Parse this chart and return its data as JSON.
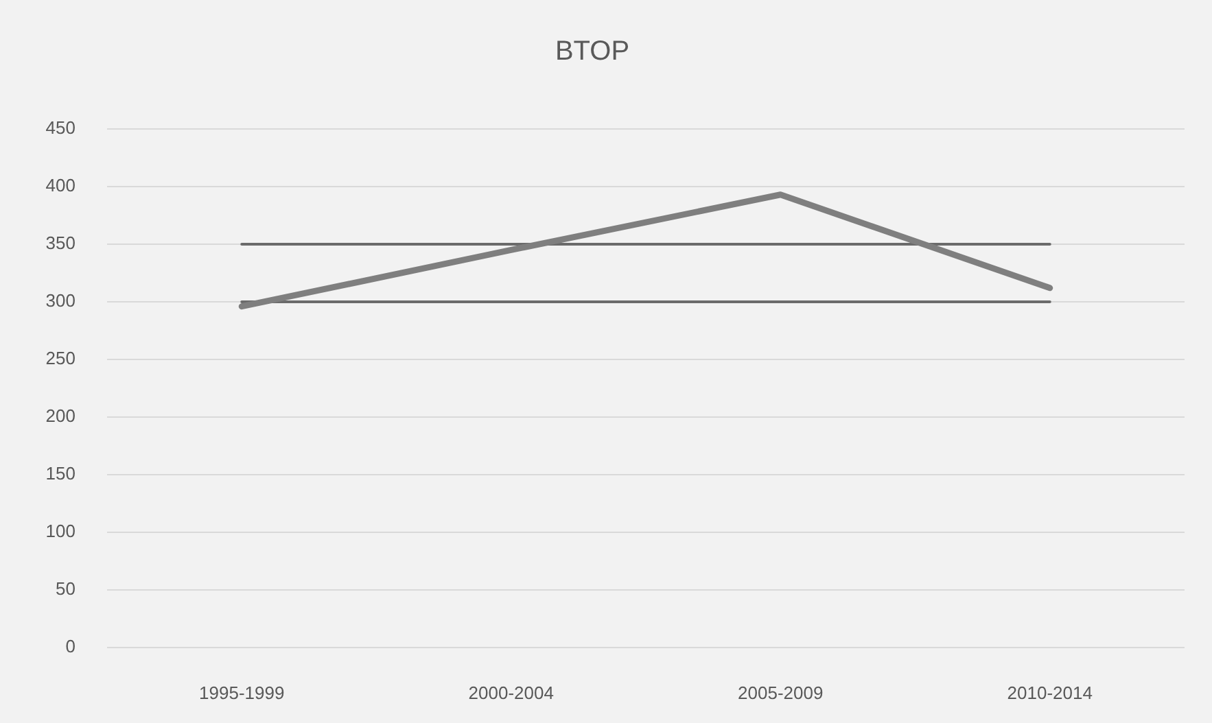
{
  "chart_data": {
    "type": "line",
    "title": "BTOP",
    "categories": [
      "1995-1999",
      "2000-2004",
      "2005-2009",
      "2010-2014"
    ],
    "series": [
      {
        "color": "#7f7f7f",
        "values": [
          296,
          345,
          393,
          312
        ]
      },
      {
        "color": "#6b6b6b",
        "values": [
          350,
          350,
          350,
          350
        ]
      },
      {
        "color": "#6b6b6b",
        "values": [
          300,
          300,
          300,
          300
        ]
      }
    ],
    "ylim": [
      0,
      450
    ],
    "yticks": [
      0,
      50,
      100,
      150,
      200,
      250,
      300,
      350,
      400,
      450
    ],
    "grid": "y",
    "legend": false,
    "marker": "none"
  }
}
